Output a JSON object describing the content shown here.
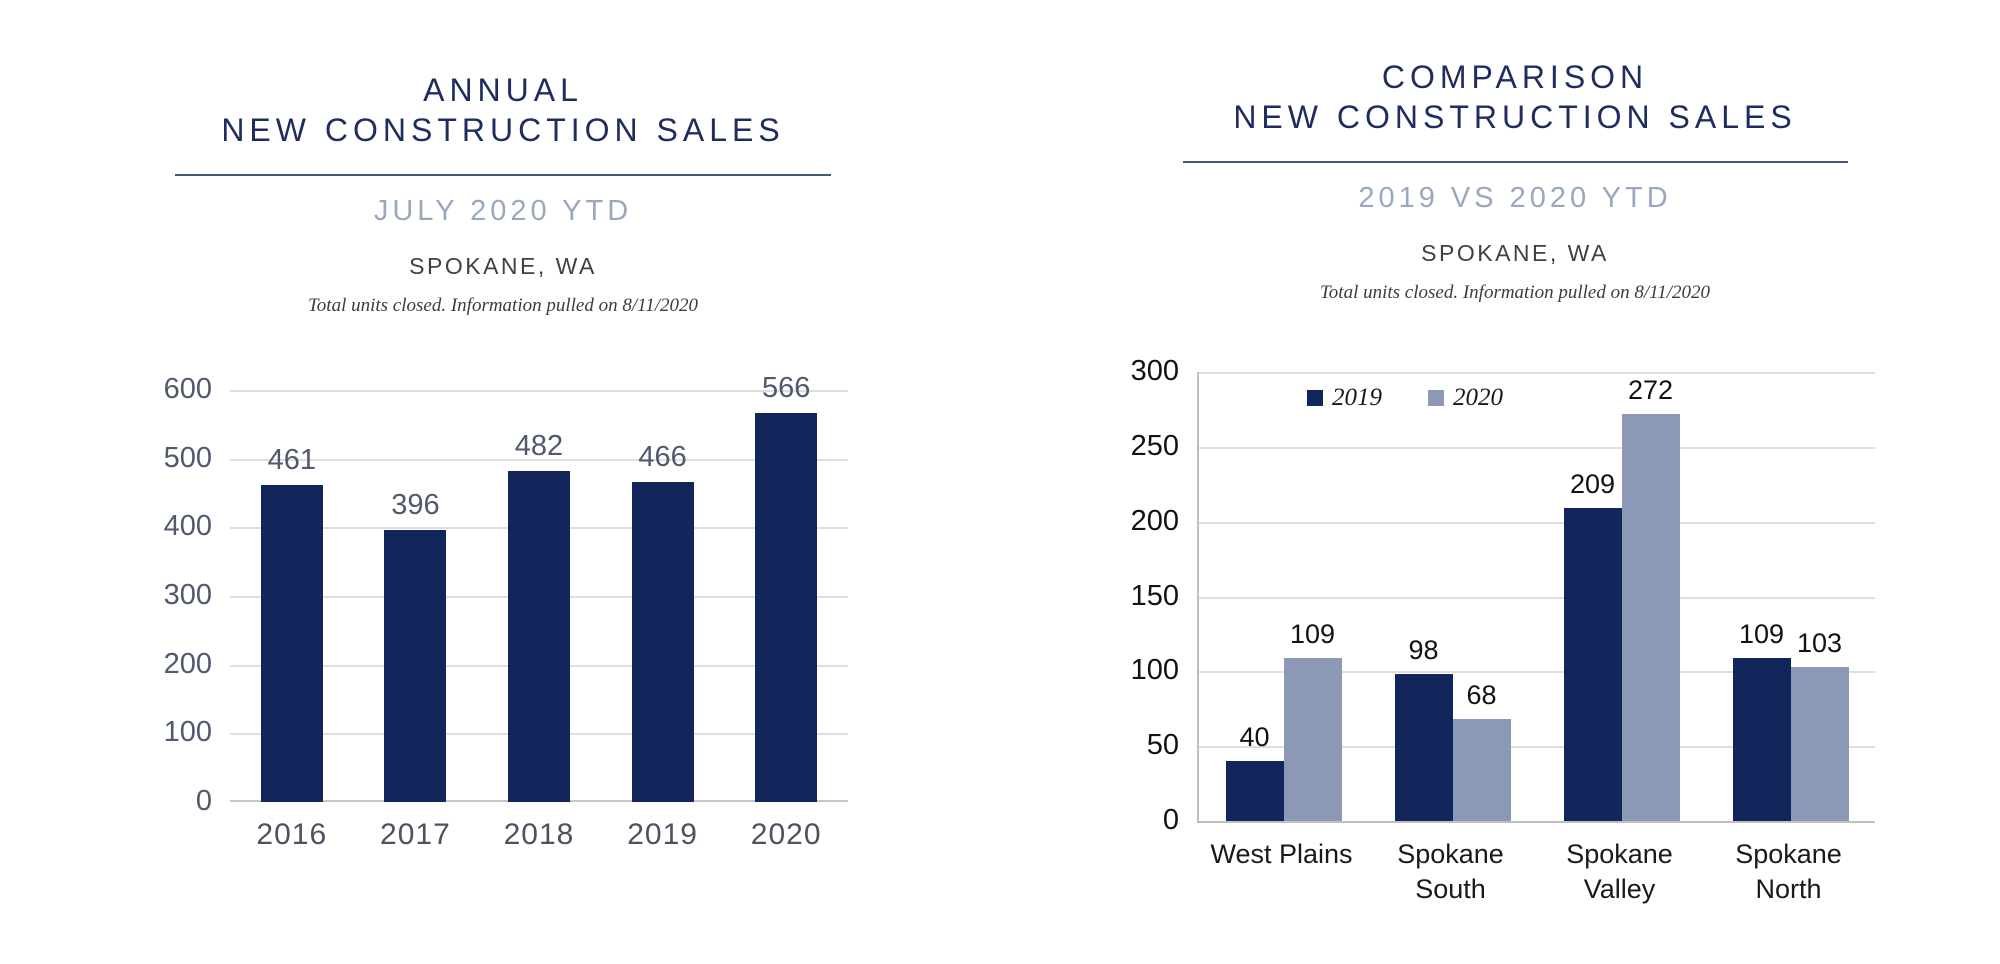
{
  "page": {
    "background": "#ffffff"
  },
  "colors": {
    "bar_navy": "#13265b",
    "bar_steel": "#8b99b6",
    "title_navy": "#1f2c5f",
    "subtitle_slate": "#9aa8bf",
    "divider": "#44567c",
    "gridline": "#dedede",
    "axis_line": "#bfbfbf",
    "left_chart_labels": "#50596d",
    "right_chart_labels": "#121212"
  },
  "chart_data": [
    {
      "type": "bar",
      "title_line1": "ANNUAL",
      "title_line2": "NEW CONSTRUCTION SALES",
      "subtitle": "JULY 2020 YTD",
      "location": "SPOKANE, WA",
      "note": "Total units closed.  Information pulled on 8/11/2020",
      "categories": [
        "2016",
        "2017",
        "2018",
        "2019",
        "2020"
      ],
      "values": [
        461,
        396,
        482,
        466,
        566
      ],
      "ylim": [
        0,
        600
      ],
      "ytick_step": 100,
      "yticks": [
        0,
        100,
        200,
        300,
        400,
        500,
        600
      ],
      "grid": true,
      "legend": "none",
      "bar_color": "#13265b"
    },
    {
      "type": "grouped-bar",
      "title_line1": "COMPARISON",
      "title_line2": "NEW CONSTRUCTION SALES",
      "subtitle": "2019 VS 2020 YTD",
      "location": "SPOKANE, WA",
      "note": "Total units closed.  Information pulled on 8/11/2020",
      "categories": [
        "West Plains",
        "Spokane South",
        "Spokane Valley",
        "Spokane North"
      ],
      "categories_wrapped": [
        [
          "West Plains"
        ],
        [
          "Spokane",
          "South"
        ],
        [
          "Spokane",
          "Valley"
        ],
        [
          "Spokane",
          "North"
        ]
      ],
      "series": [
        {
          "name": "2019",
          "color": "#13265b",
          "values": [
            40,
            98,
            209,
            109
          ]
        },
        {
          "name": "2020",
          "color": "#8b99b6",
          "values": [
            109,
            68,
            272,
            103
          ]
        }
      ],
      "ylim": [
        0,
        300
      ],
      "ytick_step": 50,
      "yticks": [
        0,
        50,
        100,
        150,
        200,
        250,
        300
      ],
      "grid": true,
      "legend": "top-inside"
    }
  ]
}
